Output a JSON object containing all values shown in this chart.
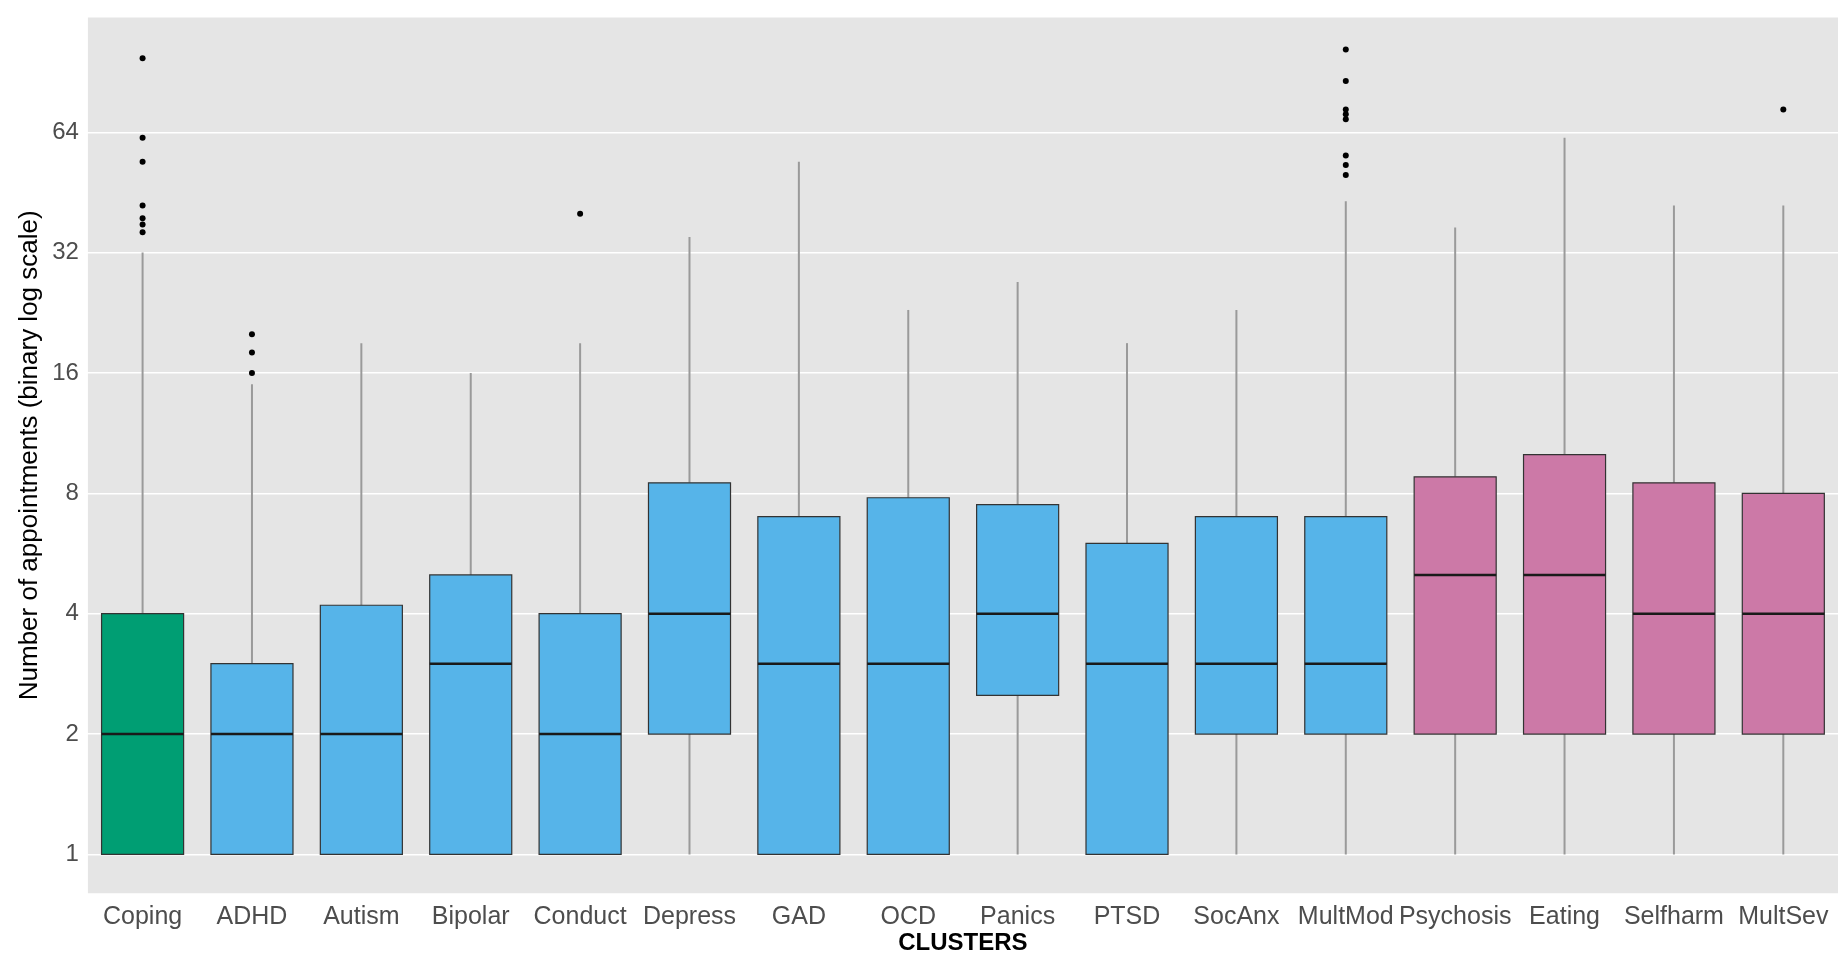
{
  "chart_data": {
    "type": "box",
    "xlabel": "CLUSTERS",
    "ylabel": "Number of appointments (binary log scale)",
    "categories": [
      "Coping",
      "ADHD",
      "Autism",
      "Bipolar",
      "Conduct",
      "Depress",
      "GAD",
      "OCD",
      "Panics",
      "PTSD",
      "SocAnx",
      "MultMod",
      "Psychosis",
      "Eating",
      "Selfharm",
      "MultSev"
    ],
    "colors": [
      "#009e73",
      "#56b4e9",
      "#56b4e9",
      "#56b4e9",
      "#56b4e9",
      "#56b4e9",
      "#56b4e9",
      "#56b4e9",
      "#56b4e9",
      "#56b4e9",
      "#56b4e9",
      "#56b4e9",
      "#cc79a7",
      "#cc79a7",
      "#cc79a7",
      "#cc79a7"
    ],
    "boxes": [
      {
        "low": 1,
        "q1": 1,
        "median": 2,
        "q3": 4,
        "high": 32,
        "outliers": [
          98,
          62,
          54,
          42,
          39,
          37.6,
          36
        ]
      },
      {
        "low": 1,
        "q1": 1,
        "median": 2,
        "q3": 3,
        "high": 15,
        "outliers": [
          20,
          18,
          16
        ]
      },
      {
        "low": 1,
        "q1": 1,
        "median": 2,
        "q3": 4.2,
        "high": 19
      },
      {
        "low": 1,
        "q1": 1,
        "median": 3,
        "q3": 5,
        "high": 16
      },
      {
        "low": 1,
        "q1": 1,
        "median": 2,
        "q3": 4,
        "high": 19,
        "outliers": [
          40
        ]
      },
      {
        "low": 1,
        "q1": 2,
        "median": 4,
        "q3": 8.5,
        "high": 35
      },
      {
        "low": 1,
        "q1": 1,
        "median": 3,
        "q3": 7,
        "high": 54
      },
      {
        "low": 1,
        "q1": 1,
        "median": 3,
        "q3": 7.8,
        "high": 23
      },
      {
        "low": 1,
        "q1": 2.5,
        "median": 4,
        "q3": 7.5,
        "high": 27
      },
      {
        "low": 1,
        "q1": 1,
        "median": 3,
        "q3": 6,
        "high": 19
      },
      {
        "low": 1,
        "q1": 2,
        "median": 3,
        "q3": 7,
        "high": 23
      },
      {
        "low": 1,
        "q1": 2,
        "median": 3,
        "q3": 7,
        "high": 43,
        "outliers": [
          103,
          86,
          73,
          71,
          69,
          56,
          53,
          50
        ]
      },
      {
        "low": 1,
        "q1": 2,
        "median": 5,
        "q3": 8.8,
        "high": 37
      },
      {
        "low": 1,
        "q1": 2,
        "median": 5,
        "q3": 10,
        "high": 62
      },
      {
        "low": 1,
        "q1": 2,
        "median": 4,
        "q3": 8.5,
        "high": 42
      },
      {
        "low": 1,
        "q1": 2,
        "median": 4,
        "q3": 8,
        "high": 42,
        "outliers": [
          73
        ]
      }
    ],
    "log": true,
    "ylim": [
      0.8,
      124
    ],
    "yticks": [
      1,
      2,
      4,
      8,
      16,
      32,
      64
    ],
    "grid": "y"
  }
}
